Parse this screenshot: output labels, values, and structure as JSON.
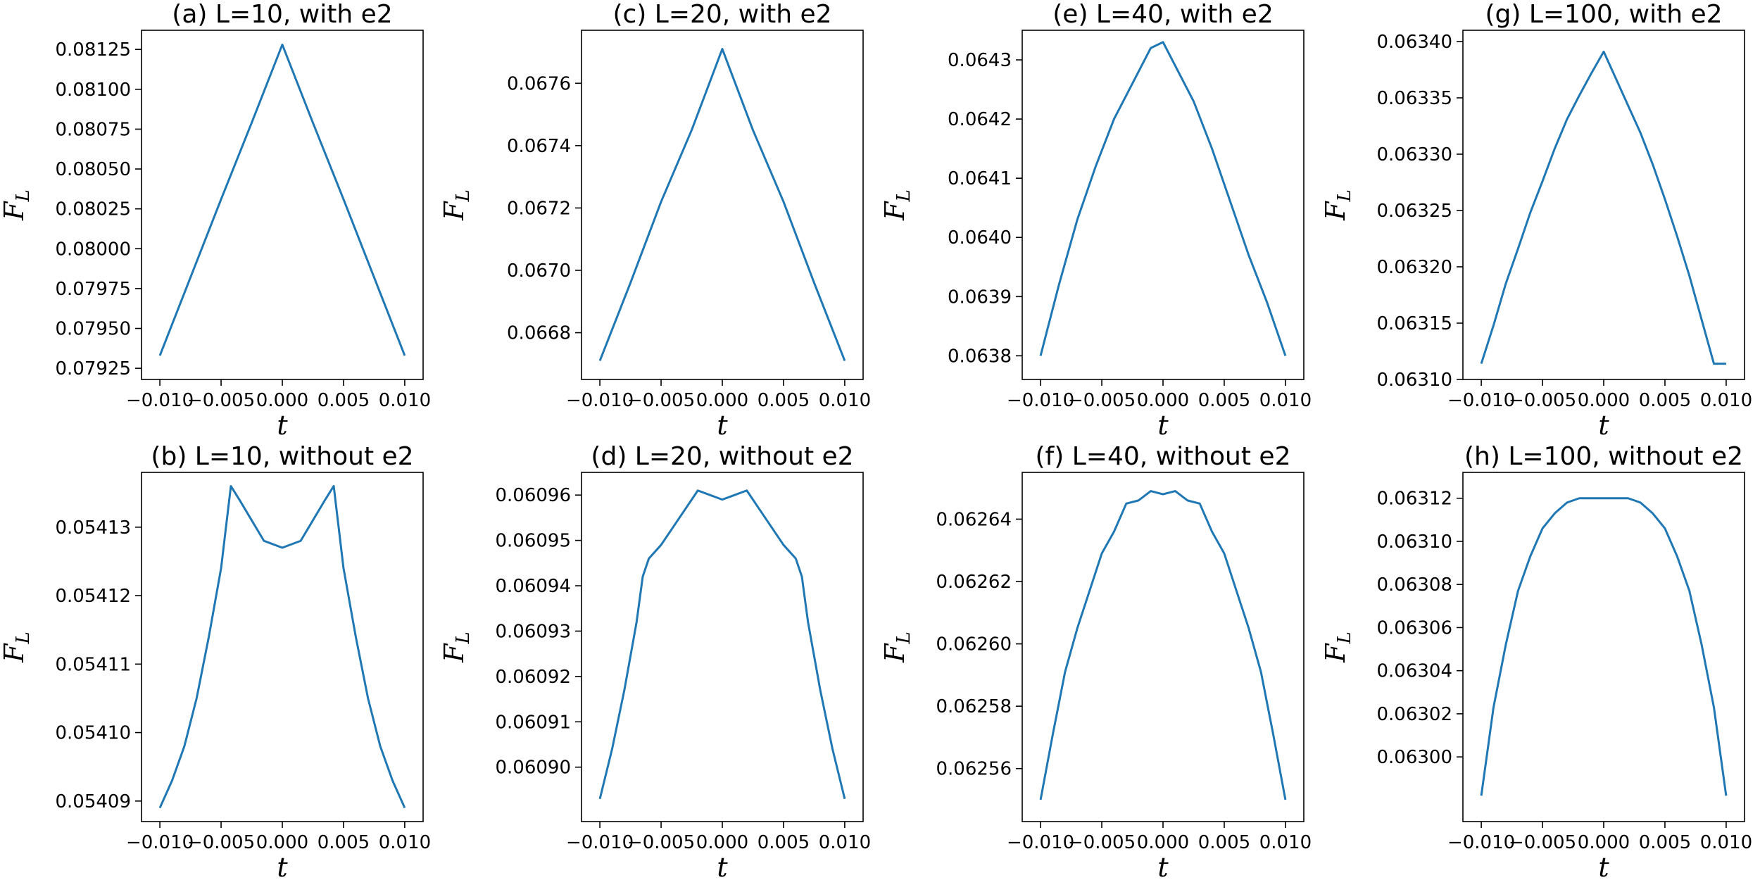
{
  "line_color": "#1f77b4",
  "chart_data": [
    {
      "type": "line",
      "title": "(a) L=10, with e2",
      "xlabel": "t",
      "ylabel": "F_L",
      "xlim": [
        -0.0115,
        0.0115
      ],
      "ylim": [
        0.07918,
        0.08137
      ],
      "xticks": [
        -0.01,
        -0.005,
        0.0,
        0.005,
        0.01
      ],
      "xtick_labels": [
        "−0.010",
        "−0.005",
        "0.000",
        "0.005",
        "0.010"
      ],
      "yticks": [
        0.07925,
        0.0795,
        0.07975,
        0.08,
        0.08025,
        0.0805,
        0.08075,
        0.081,
        0.08125
      ],
      "ytick_labels": [
        "0.07925",
        "0.07950",
        "0.07975",
        "0.08000",
        "0.08025",
        "0.08050",
        "0.08075",
        "0.08100",
        "0.08125"
      ],
      "x": [
        -0.01,
        -0.0075,
        -0.005,
        -0.0025,
        0.0,
        0.0025,
        0.005,
        0.0075,
        0.01
      ],
      "y": [
        0.07933,
        0.07982,
        0.08031,
        0.08079,
        0.08128,
        0.08079,
        0.08031,
        0.07982,
        0.07933
      ]
    },
    {
      "type": "line",
      "title": "(b) L=10, without e2",
      "xlabel": "t",
      "ylabel": "F_L",
      "xlim": [
        -0.0115,
        0.0115
      ],
      "ylim": [
        0.054087,
        0.054138
      ],
      "xticks": [
        -0.01,
        -0.005,
        0.0,
        0.005,
        0.01
      ],
      "xtick_labels": [
        "−0.010",
        "−0.005",
        "0.000",
        "0.005",
        "0.010"
      ],
      "yticks": [
        0.05409,
        0.0541,
        0.05411,
        0.05412,
        0.05413
      ],
      "ytick_labels": [
        "0.05409",
        "0.05410",
        "0.05411",
        "0.05412",
        "0.05413"
      ],
      "x": [
        -0.01,
        -0.009,
        -0.008,
        -0.007,
        -0.006,
        -0.005,
        -0.0042,
        -0.0035,
        -0.0025,
        -0.0015,
        0.0,
        0.0015,
        0.0025,
        0.0035,
        0.0042,
        0.005,
        0.006,
        0.007,
        0.008,
        0.009,
        0.01
      ],
      "y": [
        0.054089,
        0.054093,
        0.054098,
        0.054105,
        0.054114,
        0.054124,
        0.054136,
        0.054134,
        0.054131,
        0.054128,
        0.054127,
        0.054128,
        0.054131,
        0.054134,
        0.054136,
        0.054124,
        0.054114,
        0.054105,
        0.054098,
        0.054093,
        0.054089
      ]
    },
    {
      "type": "line",
      "title": "(c) L=20, with e2",
      "xlabel": "t",
      "ylabel": "F_L",
      "xlim": [
        -0.0115,
        0.0115
      ],
      "ylim": [
        0.06665,
        0.06777
      ],
      "xticks": [
        -0.01,
        -0.005,
        0.0,
        0.005,
        0.01
      ],
      "xtick_labels": [
        "−0.010",
        "−0.005",
        "0.000",
        "0.005",
        "0.010"
      ],
      "yticks": [
        0.0668,
        0.067,
        0.0672,
        0.0674,
        0.0676
      ],
      "ytick_labels": [
        "0.0668",
        "0.0670",
        "0.0672",
        "0.0674",
        "0.0676"
      ],
      "x": [
        -0.01,
        -0.0075,
        -0.005,
        -0.0025,
        0.0,
        0.0025,
        0.005,
        0.0075,
        0.01
      ],
      "y": [
        0.06671,
        0.06696,
        0.06722,
        0.06745,
        0.06771,
        0.06745,
        0.06722,
        0.06696,
        0.06671
      ]
    },
    {
      "type": "line",
      "title": "(d) L=20, without e2",
      "xlabel": "t",
      "ylabel": "F_L",
      "xlim": [
        -0.0115,
        0.0115
      ],
      "ylim": [
        0.060888,
        0.060965
      ],
      "xticks": [
        -0.01,
        -0.005,
        0.0,
        0.005,
        0.01
      ],
      "xtick_labels": [
        "−0.010",
        "−0.005",
        "0.000",
        "0.005",
        "0.010"
      ],
      "yticks": [
        0.0609,
        0.06091,
        0.06092,
        0.06093,
        0.06094,
        0.06095,
        0.06096
      ],
      "ytick_labels": [
        "0.06090",
        "0.06091",
        "0.06092",
        "0.06093",
        "0.06094",
        "0.06095",
        "0.06096"
      ],
      "x": [
        -0.01,
        -0.009,
        -0.008,
        -0.007,
        -0.0065,
        -0.006,
        -0.005,
        -0.004,
        -0.003,
        -0.002,
        -0.001,
        0.0,
        0.001,
        0.002,
        0.003,
        0.004,
        0.005,
        0.006,
        0.0065,
        0.007,
        0.008,
        0.009,
        0.01
      ],
      "y": [
        0.060893,
        0.060904,
        0.060917,
        0.060932,
        0.060942,
        0.060946,
        0.060949,
        0.060953,
        0.060957,
        0.060961,
        0.06096,
        0.060959,
        0.06096,
        0.060961,
        0.060957,
        0.060953,
        0.060949,
        0.060946,
        0.060942,
        0.060932,
        0.060917,
        0.060904,
        0.060893
      ]
    },
    {
      "type": "line",
      "title": "(e) L=40, with e2",
      "xlabel": "t",
      "ylabel": "F_L",
      "xlim": [
        -0.0115,
        0.0115
      ],
      "ylim": [
        0.06376,
        0.06435
      ],
      "xticks": [
        -0.01,
        -0.005,
        0.0,
        0.005,
        0.01
      ],
      "xtick_labels": [
        "−0.010",
        "−0.005",
        "0.000",
        "0.005",
        "0.010"
      ],
      "yticks": [
        0.0638,
        0.0639,
        0.064,
        0.0641,
        0.0642,
        0.0643
      ],
      "ytick_labels": [
        "0.0638",
        "0.0639",
        "0.0640",
        "0.0641",
        "0.0642",
        "0.0643"
      ],
      "x": [
        -0.01,
        -0.0085,
        -0.007,
        -0.0055,
        -0.004,
        -0.0025,
        -0.001,
        0.0,
        0.001,
        0.0025,
        0.004,
        0.0055,
        0.007,
        0.0085,
        0.01
      ],
      "y": [
        0.0638,
        0.06392,
        0.06403,
        0.06412,
        0.0642,
        0.06426,
        0.06432,
        0.06433,
        0.06429,
        0.06423,
        0.06415,
        0.06406,
        0.06397,
        0.06389,
        0.0638
      ]
    },
    {
      "type": "line",
      "title": "(f) L=40, without e2",
      "xlabel": "t",
      "ylabel": "F_L",
      "xlim": [
        -0.0115,
        0.0115
      ],
      "ylim": [
        0.062543,
        0.062655
      ],
      "xticks": [
        -0.01,
        -0.005,
        0.0,
        0.005,
        0.01
      ],
      "xtick_labels": [
        "−0.010",
        "−0.005",
        "0.000",
        "0.005",
        "0.010"
      ],
      "yticks": [
        0.06256,
        0.06258,
        0.0626,
        0.06262,
        0.06264
      ],
      "ytick_labels": [
        "0.06256",
        "0.06258",
        "0.06260",
        "0.06262",
        "0.06264"
      ],
      "x": [
        -0.01,
        -0.009,
        -0.008,
        -0.007,
        -0.006,
        -0.005,
        -0.004,
        -0.003,
        -0.002,
        -0.001,
        0.0,
        0.001,
        0.002,
        0.003,
        0.004,
        0.005,
        0.006,
        0.007,
        0.008,
        0.009,
        0.01
      ],
      "y": [
        0.06255,
        0.062571,
        0.062591,
        0.062605,
        0.062617,
        0.062629,
        0.062636,
        0.062645,
        0.062646,
        0.062649,
        0.062648,
        0.062649,
        0.062646,
        0.062645,
        0.062636,
        0.062629,
        0.062617,
        0.062605,
        0.062591,
        0.062571,
        0.06255
      ]
    },
    {
      "type": "line",
      "title": "(g) L=100, with e2",
      "xlabel": "t",
      "ylabel": "F_L",
      "xlim": [
        -0.0115,
        0.0115
      ],
      "ylim": [
        0.0631,
        0.06341
      ],
      "xticks": [
        -0.01,
        -0.005,
        0.0,
        0.005,
        0.01
      ],
      "xtick_labels": [
        "−0.010",
        "−0.005",
        "0.000",
        "0.005",
        "0.010"
      ],
      "yticks": [
        0.0631,
        0.06315,
        0.0632,
        0.06325,
        0.0633,
        0.06335,
        0.0634
      ],
      "ytick_labels": [
        "0.06310",
        "0.06315",
        "0.06320",
        "0.06325",
        "0.06330",
        "0.06335",
        "0.06340"
      ],
      "x": [
        -0.01,
        -0.009,
        -0.008,
        -0.007,
        -0.006,
        -0.005,
        -0.004,
        -0.003,
        -0.002,
        -0.001,
        0.0,
        0.001,
        0.002,
        0.003,
        0.004,
        0.005,
        0.006,
        0.007,
        0.008,
        0.009,
        0.01
      ],
      "y": [
        0.063114,
        0.063148,
        0.063185,
        0.063216,
        0.063248,
        0.063276,
        0.063305,
        0.063331,
        0.063352,
        0.063372,
        0.063391,
        0.063367,
        0.063343,
        0.063319,
        0.063291,
        0.06326,
        0.063227,
        0.063192,
        0.063153,
        0.063114,
        0.063114
      ]
    },
    {
      "type": "line",
      "title": "(h) L=100, without e2",
      "xlabel": "t",
      "ylabel": "F_L",
      "xlim": [
        -0.0115,
        0.0115
      ],
      "ylim": [
        0.06297,
        0.063132
      ],
      "xticks": [
        -0.01,
        -0.005,
        0.0,
        0.005,
        0.01
      ],
      "xtick_labels": [
        "−0.010",
        "−0.005",
        "0.000",
        "0.005",
        "0.010"
      ],
      "yticks": [
        0.063,
        0.06302,
        0.06304,
        0.06306,
        0.06308,
        0.0631,
        0.06312
      ],
      "ytick_labels": [
        "0.06300",
        "0.06302",
        "0.06304",
        "0.06306",
        "0.06308",
        "0.06310",
        "0.06312"
      ],
      "x": [
        -0.01,
        -0.009,
        -0.008,
        -0.007,
        -0.006,
        -0.005,
        -0.004,
        -0.003,
        -0.002,
        -0.001,
        0.0,
        0.001,
        0.002,
        0.003,
        0.004,
        0.005,
        0.006,
        0.007,
        0.008,
        0.009,
        0.01
      ],
      "y": [
        0.062982,
        0.063023,
        0.063052,
        0.063077,
        0.063093,
        0.063106,
        0.063113,
        0.063118,
        0.06312,
        0.06312,
        0.06312,
        0.06312,
        0.06312,
        0.063118,
        0.063113,
        0.063106,
        0.063093,
        0.063077,
        0.063052,
        0.063023,
        0.062982
      ]
    }
  ]
}
